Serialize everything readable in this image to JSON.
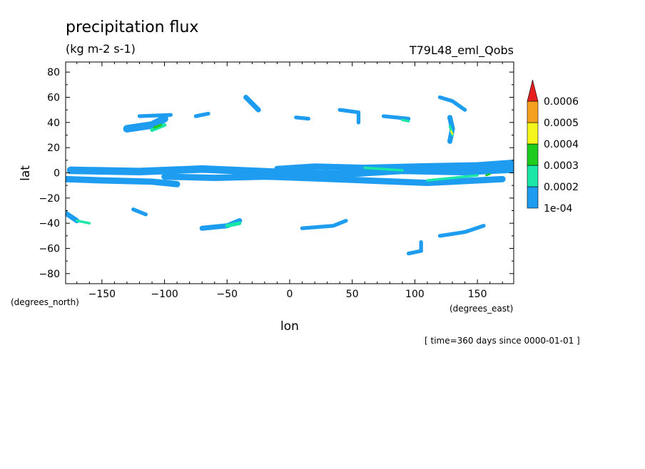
{
  "chart_data": {
    "type": "heatmap",
    "title": "precipitation flux",
    "subtitle": "(kg m-2 s-1)",
    "experiment": "T79L48_eml_Qobs",
    "xlabel": "lon",
    "ylabel": "lat",
    "x_units": "(degrees_east)",
    "y_units": "(degrees_north)",
    "time_label": "[ time=360 days since 0000-01-01 ]",
    "xlim": [
      -179,
      179
    ],
    "ylim": [
      -88,
      88
    ],
    "x_ticks": [
      -150,
      -100,
      -50,
      0,
      50,
      100,
      150
    ],
    "y_ticks": [
      -80,
      -60,
      -40,
      -20,
      0,
      20,
      40,
      60,
      80
    ],
    "colorbar": {
      "levels": [
        "1e-04",
        "0.0002",
        "0.0003",
        "0.0004",
        "0.0005",
        "0.0006"
      ],
      "colors": [
        "#1e9cf0",
        "#19e6a8",
        "#1ecc1e",
        "#f5f51e",
        "#f5a01e",
        "#e61e1e"
      ]
    },
    "features": [
      {
        "lon": [
          -175,
          -120,
          -70,
          0,
          40,
          90,
          140,
          179
        ],
        "lat": [
          2,
          1,
          3,
          0,
          -1,
          2,
          1,
          3
        ],
        "level": 1,
        "width": 6
      },
      {
        "lon": [
          -179,
          -150,
          -110,
          -90
        ],
        "lat": [
          -5,
          -6,
          -7,
          -9
        ],
        "level": 1,
        "width": 5
      },
      {
        "lon": [
          -100,
          -60,
          -20,
          10,
          60,
          110,
          170
        ],
        "lat": [
          -3,
          -4,
          -3,
          -4,
          -6,
          -8,
          -5
        ],
        "level": 1,
        "width": 5
      },
      {
        "lon": [
          -10,
          20,
          60,
          100,
          150,
          178
        ],
        "lat": [
          3,
          5,
          4,
          5,
          6,
          8
        ],
        "level": 1,
        "width": 5
      },
      {
        "lon": [
          -130,
          -110,
          -100
        ],
        "lat": [
          35,
          38,
          43
        ],
        "level": 1,
        "width": 6
      },
      {
        "lon": [
          -120,
          -95
        ],
        "lat": [
          45,
          46
        ],
        "level": 1,
        "width": 3
      },
      {
        "lon": [
          -75,
          -65
        ],
        "lat": [
          45,
          47
        ],
        "level": 1,
        "width": 3
      },
      {
        "lon": [
          -35,
          -30,
          -25
        ],
        "lat": [
          60,
          55,
          50
        ],
        "level": 1,
        "width": 4
      },
      {
        "lon": [
          5,
          15
        ],
        "lat": [
          44,
          43
        ],
        "level": 1,
        "width": 3
      },
      {
        "lon": [
          40,
          55,
          55
        ],
        "lat": [
          50,
          48,
          40
        ],
        "level": 1,
        "width": 3
      },
      {
        "lon": [
          75,
          95
        ],
        "lat": [
          45,
          43
        ],
        "level": 1,
        "width": 3
      },
      {
        "lon": [
          120,
          130,
          140
        ],
        "lat": [
          60,
          57,
          50
        ],
        "level": 1,
        "width": 3
      },
      {
        "lon": [
          128,
          130,
          128
        ],
        "lat": [
          44,
          35,
          25
        ],
        "level": 1,
        "width": 4
      },
      {
        "lon": [
          -179,
          -170
        ],
        "lat": [
          -32,
          -38
        ],
        "level": 1,
        "width": 4
      },
      {
        "lon": [
          -125,
          -115
        ],
        "lat": [
          -29,
          -33
        ],
        "level": 1,
        "width": 3
      },
      {
        "lon": [
          -70,
          -50,
          -40
        ],
        "lat": [
          -44,
          -42,
          -38
        ],
        "level": 1,
        "width": 4
      },
      {
        "lon": [
          10,
          35,
          45
        ],
        "lat": [
          -44,
          -42,
          -38
        ],
        "level": 1,
        "width": 3
      },
      {
        "lon": [
          120,
          140,
          155
        ],
        "lat": [
          -50,
          -47,
          -42
        ],
        "level": 1,
        "width": 3
      },
      {
        "lon": [
          95,
          105,
          105
        ],
        "lat": [
          -64,
          -62,
          -55
        ],
        "level": 1,
        "width": 3
      },
      {
        "lon": [
          -110,
          -100
        ],
        "lat": [
          34,
          38
        ],
        "level": 2,
        "width": 3
      },
      {
        "lon": [
          -50,
          -40
        ],
        "lat": [
          -42,
          -40
        ],
        "level": 2,
        "width": 3
      },
      {
        "lon": [
          90,
          95
        ],
        "lat": [
          42,
          41
        ],
        "level": 2,
        "width": 2
      },
      {
        "lon": [
          128,
          130
        ],
        "lat": [
          37,
          30
        ],
        "level": 2,
        "width": 2
      },
      {
        "lon": [
          60,
          90
        ],
        "lat": [
          4,
          2
        ],
        "level": 2,
        "width": 2
      },
      {
        "lon": [
          110,
          150
        ],
        "lat": [
          -6,
          -2
        ],
        "level": 2,
        "width": 2
      },
      {
        "lon": [
          -170,
          -160
        ],
        "lat": [
          -38,
          -40
        ],
        "level": 2,
        "width": 2
      },
      {
        "lon": [
          -108,
          -103
        ],
        "lat": [
          36,
          38
        ],
        "level": 3,
        "width": 2
      },
      {
        "lon": [
          129,
          130
        ],
        "lat": [
          33,
          31
        ],
        "level": 4,
        "width": 1.5
      },
      {
        "lon": [
          157,
          160
        ],
        "lat": [
          -2,
          -1
        ],
        "level": 3,
        "width": 1.5
      }
    ]
  }
}
